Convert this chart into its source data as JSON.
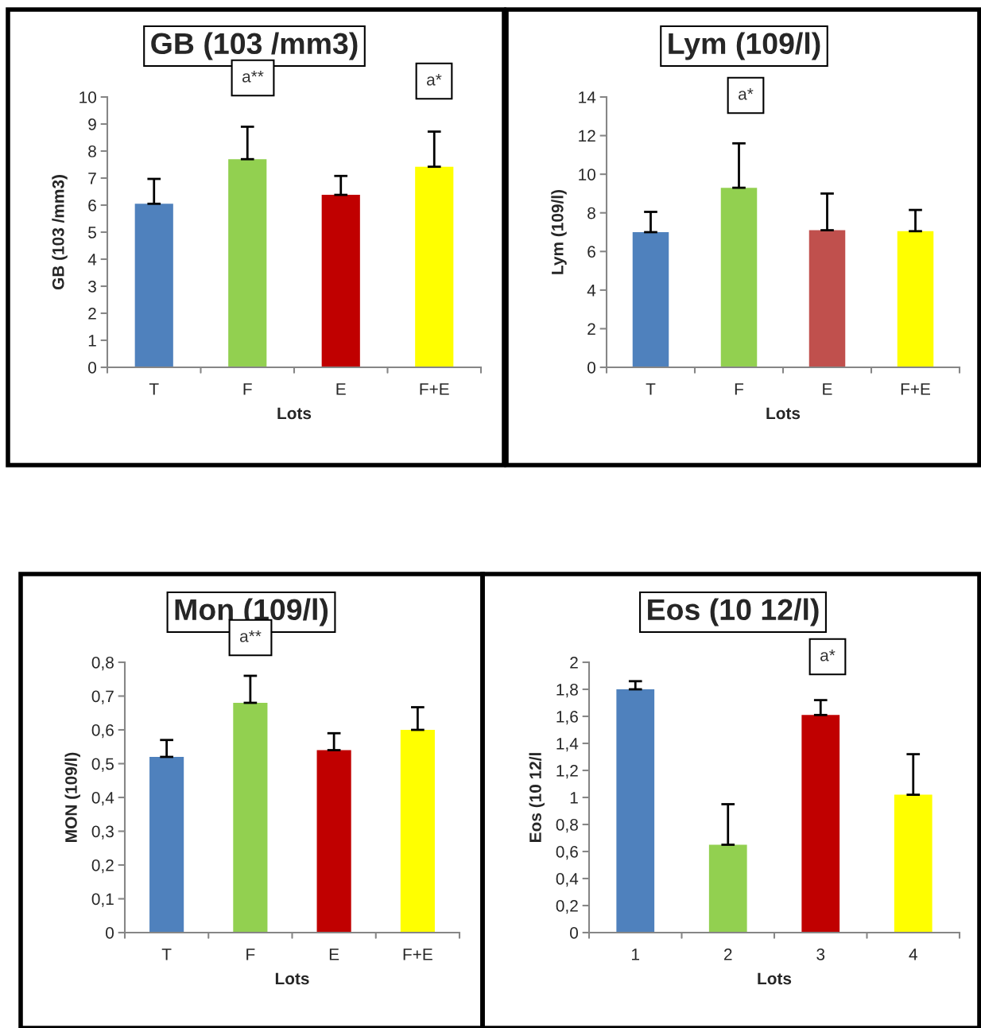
{
  "chart_data": [
    {
      "type": "bar",
      "title": "GB (103 /mm3)",
      "xlabel": "Lots",
      "ylabel": "GB (103 /mm3)",
      "categories": [
        "T",
        "F",
        "E",
        "F+E"
      ],
      "values": [
        6.05,
        7.7,
        6.38,
        7.42
      ],
      "colors": [
        "#4f81bd",
        "#92d050",
        "#c00000",
        "#ffff00"
      ],
      "errors": [
        [
          6.05,
          6.97
        ],
        [
          7.7,
          8.9
        ],
        [
          6.38,
          7.08
        ],
        [
          7.42,
          8.72
        ]
      ],
      "ylim": [
        0,
        10
      ],
      "yticks": [
        0,
        1,
        2,
        3,
        4,
        5,
        6,
        7,
        8,
        9,
        10
      ],
      "annotations": [
        "a**",
        "a*"
      ]
    },
    {
      "type": "bar",
      "title": "Lym (109/l)",
      "xlabel": "Lots",
      "ylabel": "Lym (109/l)",
      "categories": [
        "T",
        "F",
        "E",
        "F+E"
      ],
      "values": [
        7.0,
        9.3,
        7.1,
        7.05
      ],
      "colors": [
        "#4f81bd",
        "#92d050",
        "#c0504d",
        "#ffff00"
      ],
      "errors": [
        [
          7.0,
          8.05
        ],
        [
          9.3,
          11.6
        ],
        [
          7.1,
          9.0
        ],
        [
          7.05,
          8.15
        ]
      ],
      "ylim": [
        0,
        14
      ],
      "yticks": [
        0,
        2,
        4,
        6,
        8,
        10,
        12,
        14
      ],
      "annotations": [
        "a*"
      ]
    },
    {
      "type": "bar",
      "title": "Mon (109/l)",
      "xlabel": "Lots",
      "ylabel": "MON (109/l)",
      "categories": [
        "T",
        "F",
        "E",
        "F+E"
      ],
      "values": [
        0.52,
        0.68,
        0.54,
        0.6
      ],
      "colors": [
        "#4f81bd",
        "#92d050",
        "#c00000",
        "#ffff00"
      ],
      "errors": [
        [
          0.52,
          0.57
        ],
        [
          0.68,
          0.76
        ],
        [
          0.54,
          0.59
        ],
        [
          0.6,
          0.667
        ]
      ],
      "ylim": [
        0,
        0.8
      ],
      "yticks": [
        0,
        {
          "value": 0.1,
          "label": "0,1"
        },
        {
          "value": 0.2,
          "label": "0,2"
        },
        {
          "value": 0.3,
          "label": "0,3"
        },
        {
          "value": 0.4,
          "label": "0,4"
        },
        {
          "value": 0.5,
          "label": "0,5"
        },
        {
          "value": 0.6,
          "label": "0,6"
        },
        {
          "value": 0.7,
          "label": "0,7"
        },
        {
          "value": 0.8,
          "label": "0,8"
        }
      ],
      "annotations": [
        "a**"
      ]
    },
    {
      "type": "bar",
      "title": "Eos (10 12/l)",
      "xlabel": "Lots",
      "ylabel": "Eos (10 12/l",
      "categories": [
        "1",
        "2",
        "3",
        "4"
      ],
      "values": [
        1.8,
        0.65,
        1.61,
        1.02
      ],
      "colors": [
        "#4f81bd",
        "#92d050",
        "#c00000",
        "#ffff00"
      ],
      "errors": [
        [
          1.8,
          1.86
        ],
        [
          0.65,
          0.95
        ],
        [
          1.61,
          1.72
        ],
        [
          1.02,
          1.32
        ]
      ],
      "ylim": [
        0,
        2
      ],
      "yticks": [
        0,
        {
          "value": 0.2,
          "label": "0,2"
        },
        {
          "value": 0.4,
          "label": "0,4"
        },
        {
          "value": 0.6,
          "label": "0,6"
        },
        {
          "value": 0.8,
          "label": "0,8"
        },
        1,
        {
          "value": 1.2,
          "label": "1,2"
        },
        {
          "value": 1.4,
          "label": "1,4"
        },
        {
          "value": 1.6,
          "label": "1,6"
        },
        {
          "value": 1.8,
          "label": "1,8"
        },
        2
      ],
      "annotations": [
        "a*"
      ]
    }
  ]
}
